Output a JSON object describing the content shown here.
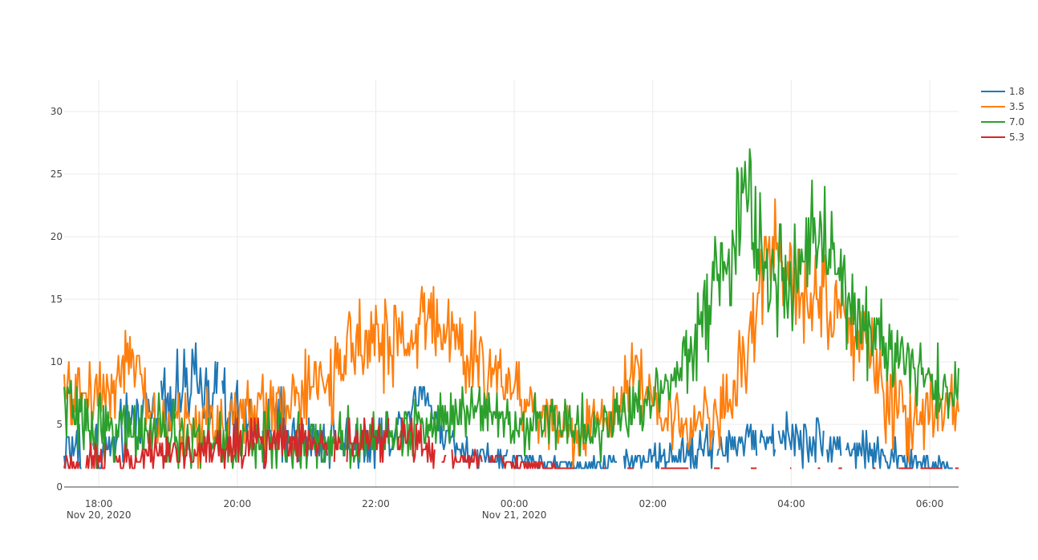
{
  "chart_data": {
    "type": "line",
    "title": "",
    "xlabel": "",
    "ylabel": "",
    "x_range": [
      "2020-11-20T17:30",
      "2020-11-21T06:25"
    ],
    "x_sample_minutes": 1,
    "ylim": [
      0,
      32.5
    ],
    "grid": true,
    "legend_position": "top-right",
    "x_ticks": [
      {
        "at": "2020-11-20T18:00",
        "label": "18:00",
        "sublabel": "Nov 20, 2020"
      },
      {
        "at": "2020-11-20T20:00",
        "label": "20:00",
        "sublabel": ""
      },
      {
        "at": "2020-11-20T22:00",
        "label": "22:00",
        "sublabel": ""
      },
      {
        "at": "2020-11-21T00:00",
        "label": "00:00",
        "sublabel": "Nov 21, 2020"
      },
      {
        "at": "2020-11-21T02:00",
        "label": "02:00",
        "sublabel": ""
      },
      {
        "at": "2020-11-21T04:00",
        "label": "04:00",
        "sublabel": ""
      },
      {
        "at": "2020-11-21T06:00",
        "label": "06:00",
        "sublabel": ""
      }
    ],
    "y_ticks": [
      {
        "value": 0,
        "label": "0"
      },
      {
        "value": 5,
        "label": "5"
      },
      {
        "value": 10,
        "label": "10"
      },
      {
        "value": 15,
        "label": "15"
      },
      {
        "value": 20,
        "label": "20"
      },
      {
        "value": 25,
        "label": "25"
      },
      {
        "value": 30,
        "label": "30"
      }
    ],
    "series": [
      {
        "name": "1.8",
        "color": "#1f77b4",
        "gap_probability": 0.12,
        "trend": [
          [
            "2020-11-20T17:30",
            3
          ],
          [
            "2020-11-20T18:10",
            3
          ],
          [
            "2020-11-20T18:45",
            7
          ],
          [
            "2020-11-20T19:30",
            8
          ],
          [
            "2020-11-20T20:00",
            5
          ],
          [
            "2020-11-20T21:00",
            4
          ],
          [
            "2020-11-20T22:00",
            3.5
          ],
          [
            "2020-11-20T22:20",
            5
          ],
          [
            "2020-11-20T22:40",
            8
          ],
          [
            "2020-11-20T23:00",
            4
          ],
          [
            "2020-11-20T23:30",
            2.5
          ],
          [
            "2020-11-21T00:00",
            2
          ],
          [
            "2020-11-21T01:00",
            1.6
          ],
          [
            "2020-11-21T02:00",
            2.2
          ],
          [
            "2020-11-21T03:00",
            3.5
          ],
          [
            "2020-11-21T04:00",
            4
          ],
          [
            "2020-11-21T05:00",
            3
          ],
          [
            "2020-11-21T06:00",
            1.6
          ]
        ],
        "noise": [
          [
            "2020-11-20T17:30",
            2.5
          ],
          [
            "2020-11-20T20:00",
            3
          ],
          [
            "2020-11-20T23:30",
            1
          ],
          [
            "2020-11-21T01:00",
            0.6
          ],
          [
            "2020-11-21T02:30",
            1.4
          ],
          [
            "2020-11-21T04:00",
            1.8
          ],
          [
            "2020-11-21T06:00",
            1
          ]
        ],
        "floor": 1.5,
        "step": 0.5
      },
      {
        "name": "3.5",
        "color": "#ff7f0e",
        "gap_probability": 0,
        "trend": [
          [
            "2020-11-20T17:30",
            7
          ],
          [
            "2020-11-20T18:10",
            8
          ],
          [
            "2020-11-20T18:25",
            10.5
          ],
          [
            "2020-11-20T18:50",
            5
          ],
          [
            "2020-11-20T19:30",
            5
          ],
          [
            "2020-11-20T20:00",
            5.5
          ],
          [
            "2020-11-20T20:30",
            6.5
          ],
          [
            "2020-11-20T21:00",
            7.5
          ],
          [
            "2020-11-20T21:30",
            9
          ],
          [
            "2020-11-20T21:50",
            13
          ],
          [
            "2020-11-20T22:15",
            11
          ],
          [
            "2020-11-20T22:50",
            14
          ],
          [
            "2020-11-20T23:20",
            10
          ],
          [
            "2020-11-20T23:50",
            9
          ],
          [
            "2020-11-21T00:20",
            6
          ],
          [
            "2020-11-21T01:00",
            4
          ],
          [
            "2020-11-21T01:30",
            7
          ],
          [
            "2020-11-21T01:45",
            10
          ],
          [
            "2020-11-21T02:00",
            6
          ],
          [
            "2020-11-21T02:30",
            5
          ],
          [
            "2020-11-21T03:00",
            6
          ],
          [
            "2020-11-21T03:20",
            10
          ],
          [
            "2020-11-21T03:40",
            19
          ],
          [
            "2020-11-21T04:00",
            17
          ],
          [
            "2020-11-21T04:20",
            16
          ],
          [
            "2020-11-21T04:40",
            14
          ],
          [
            "2020-11-21T05:00",
            13
          ],
          [
            "2020-11-21T05:20",
            7
          ],
          [
            "2020-11-21T05:45",
            5.5
          ],
          [
            "2020-11-21T06:25",
            7.5
          ]
        ],
        "noise": [
          [
            "2020-11-20T17:30",
            2.5
          ],
          [
            "2020-11-20T21:30",
            3
          ],
          [
            "2020-11-20T22:30",
            3.5
          ],
          [
            "2020-11-21T00:30",
            2.5
          ],
          [
            "2020-11-21T02:30",
            2
          ],
          [
            "2020-11-21T04:00",
            4
          ],
          [
            "2020-11-21T06:00",
            3
          ]
        ],
        "floor": 1.5,
        "step": 0.5
      },
      {
        "name": "7.0",
        "color": "#2ca02c",
        "gap_probability": 0,
        "trend": [
          [
            "2020-11-20T17:30",
            7
          ],
          [
            "2020-11-20T17:45",
            5
          ],
          [
            "2020-11-20T18:30",
            4.5
          ],
          [
            "2020-11-20T19:30",
            3.5
          ],
          [
            "2020-11-20T20:00",
            3.5
          ],
          [
            "2020-11-20T21:00",
            3.5
          ],
          [
            "2020-11-20T22:00",
            4
          ],
          [
            "2020-11-20T22:30",
            4.5
          ],
          [
            "2020-11-20T23:00",
            5.5
          ],
          [
            "2020-11-20T23:30",
            7
          ],
          [
            "2020-11-21T00:00",
            5
          ],
          [
            "2020-11-21T00:30",
            5.5
          ],
          [
            "2020-11-21T01:00",
            4.5
          ],
          [
            "2020-11-21T01:30",
            5.5
          ],
          [
            "2020-11-21T02:00",
            7
          ],
          [
            "2020-11-21T02:30",
            11
          ],
          [
            "2020-11-21T03:00",
            17
          ],
          [
            "2020-11-21T03:20",
            23
          ],
          [
            "2020-11-21T03:40",
            17
          ],
          [
            "2020-11-21T04:00",
            17
          ],
          [
            "2020-11-21T04:20",
            20
          ],
          [
            "2020-11-21T04:40",
            17
          ],
          [
            "2020-11-21T05:00",
            13
          ],
          [
            "2020-11-21T05:30",
            11
          ],
          [
            "2020-11-21T06:00",
            8
          ],
          [
            "2020-11-21T06:25",
            8
          ]
        ],
        "noise": [
          [
            "2020-11-20T17:30",
            2.5
          ],
          [
            "2020-11-21T00:00",
            2
          ],
          [
            "2020-11-21T02:00",
            2.5
          ],
          [
            "2020-11-21T03:20",
            4.5
          ],
          [
            "2020-11-21T04:30",
            4
          ],
          [
            "2020-11-21T06:00",
            2.5
          ]
        ],
        "floor": 1.5,
        "step": 0.5
      },
      {
        "name": "5.3",
        "color": "#d62728",
        "gap_probability": 0.05,
        "trend": [
          [
            "2020-11-20T17:30",
            2
          ],
          [
            "2020-11-20T18:30",
            2.5
          ],
          [
            "2020-11-20T19:30",
            3
          ],
          [
            "2020-11-20T20:00",
            3
          ],
          [
            "2020-11-20T20:30",
            4
          ],
          [
            "2020-11-20T21:30",
            3.5
          ],
          [
            "2020-11-20T22:00",
            4
          ],
          [
            "2020-11-20T22:30",
            3.5
          ],
          [
            "2020-11-20T23:00",
            2.5
          ],
          [
            "2020-11-20T23:30",
            2
          ],
          [
            "2020-11-21T00:15",
            1.8
          ],
          [
            "2020-11-21T00:40",
            1.5
          ],
          [
            "2020-11-21T06:25",
            1.5
          ]
        ],
        "noise": [
          [
            "2020-11-20T17:30",
            1
          ],
          [
            "2020-11-20T20:30",
            2
          ],
          [
            "2020-11-20T22:30",
            1.5
          ],
          [
            "2020-11-21T00:00",
            0.7
          ],
          [
            "2020-11-21T00:40",
            0.2
          ],
          [
            "2020-11-21T06:25",
            0.1
          ]
        ],
        "floor": 1.5,
        "step": 0.5,
        "sparse_after": "2020-11-21T00:40",
        "sparse_gap_probability": 0.55
      }
    ]
  }
}
